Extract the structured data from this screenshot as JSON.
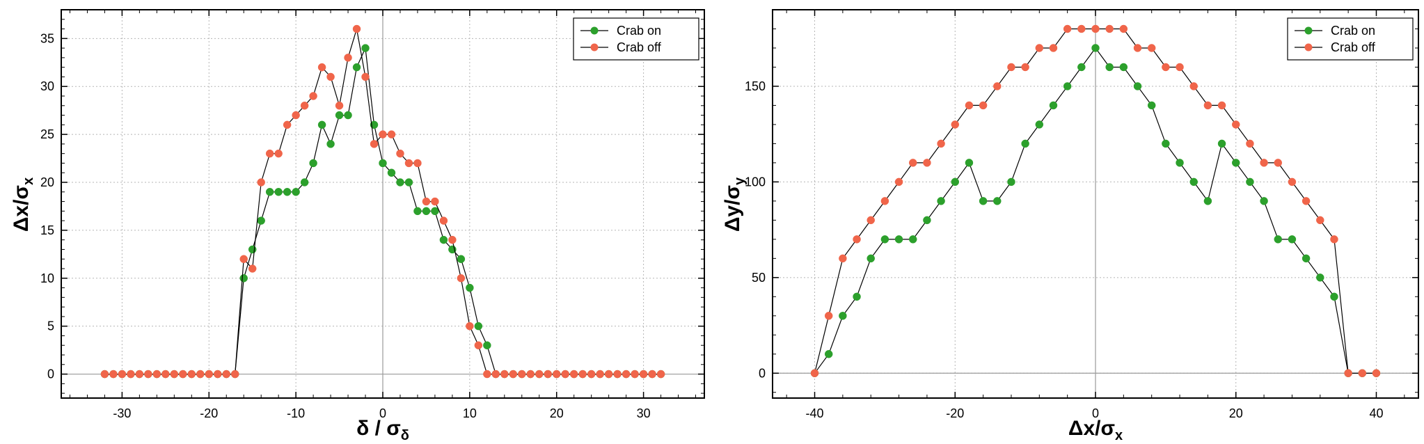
{
  "chart_data": [
    {
      "type": "line",
      "xlabel": "δ / σδ",
      "xlabel_main": "δ / σ",
      "xlabel_sub": "δ",
      "ylabel": "Δx/σx",
      "ylabel_main": "Δx/σ",
      "ylabel_sub": "x",
      "xlim": [
        -37,
        37
      ],
      "ylim": [
        -2.5,
        38
      ],
      "xticks": [
        -30,
        -20,
        -10,
        0,
        10,
        20,
        30
      ],
      "yticks": [
        0,
        5,
        10,
        15,
        20,
        25,
        30,
        35
      ],
      "grid": true,
      "legend_position": "top-right",
      "series": [
        {
          "name": "Crab on",
          "color": "#2ca02c",
          "x": [
            -32,
            -31,
            -30,
            -29,
            -28,
            -27,
            -26,
            -25,
            -24,
            -23,
            -22,
            -21,
            -20,
            -19,
            -18,
            -17,
            -16,
            -15,
            -14,
            -13,
            -12,
            -11,
            -10,
            -9,
            -8,
            -7,
            -6,
            -5,
            -4,
            -3,
            -2,
            -1,
            0,
            1,
            2,
            3,
            4,
            5,
            6,
            7,
            8,
            9,
            10,
            11,
            12,
            13,
            14,
            15,
            16,
            17,
            18,
            19,
            20,
            21,
            22,
            23,
            24,
            25,
            26,
            27,
            28,
            29,
            30,
            31,
            32
          ],
          "y": [
            0,
            0,
            0,
            0,
            0,
            0,
            0,
            0,
            0,
            0,
            0,
            0,
            0,
            0,
            0,
            0,
            10,
            13,
            16,
            19,
            19,
            19,
            19,
            20,
            22,
            26,
            24,
            27,
            27,
            32,
            34,
            26,
            22,
            21,
            20,
            20,
            17,
            17,
            17,
            14,
            13,
            12,
            9,
            5,
            3,
            0,
            0,
            0,
            0,
            0,
            0,
            0,
            0,
            0,
            0,
            0,
            0,
            0,
            0,
            0,
            0,
            0,
            0,
            0,
            0
          ]
        },
        {
          "name": "Crab off",
          "color": "#f0654a",
          "x": [
            -32,
            -31,
            -30,
            -29,
            -28,
            -27,
            -26,
            -25,
            -24,
            -23,
            -22,
            -21,
            -20,
            -19,
            -18,
            -17,
            -16,
            -15,
            -14,
            -13,
            -12,
            -11,
            -10,
            -9,
            -8,
            -7,
            -6,
            -5,
            -4,
            -3,
            -2,
            -1,
            0,
            1,
            2,
            3,
            4,
            5,
            6,
            7,
            8,
            9,
            10,
            11,
            12,
            13,
            14,
            15,
            16,
            17,
            18,
            19,
            20,
            21,
            22,
            23,
            24,
            25,
            26,
            27,
            28,
            29,
            30,
            31,
            32
          ],
          "y": [
            0,
            0,
            0,
            0,
            0,
            0,
            0,
            0,
            0,
            0,
            0,
            0,
            0,
            0,
            0,
            0,
            12,
            11,
            20,
            23,
            23,
            26,
            27,
            28,
            29,
            32,
            31,
            28,
            33,
            36,
            31,
            24,
            25,
            25,
            23,
            22,
            22,
            18,
            18,
            16,
            14,
            10,
            5,
            3,
            0,
            0,
            0,
            0,
            0,
            0,
            0,
            0,
            0,
            0,
            0,
            0,
            0,
            0,
            0,
            0,
            0,
            0,
            0,
            0,
            0
          ]
        }
      ]
    },
    {
      "type": "line",
      "xlabel": "Δx/σx",
      "xlabel_main": "Δx/σ",
      "xlabel_sub": "x",
      "ylabel": "Δy/σy",
      "ylabel_main": "Δy/σ",
      "ylabel_sub": "y",
      "xlim": [
        -46,
        46
      ],
      "ylim": [
        -13,
        190
      ],
      "xticks": [
        -40,
        -20,
        0,
        20,
        40
      ],
      "yticks": [
        0,
        50,
        100,
        150
      ],
      "grid": true,
      "legend_position": "top-right",
      "series": [
        {
          "name": "Crab on",
          "color": "#2ca02c",
          "x": [
            -40,
            -38,
            -36,
            -34,
            -32,
            -30,
            -28,
            -26,
            -24,
            -22,
            -20,
            -18,
            -16,
            -14,
            -12,
            -10,
            -8,
            -6,
            -4,
            -2,
            0,
            2,
            4,
            6,
            8,
            10,
            12,
            14,
            16,
            18,
            20,
            22,
            24,
            26,
            28,
            30,
            32,
            34,
            36,
            38,
            40
          ],
          "y": [
            0,
            10,
            30,
            40,
            60,
            70,
            70,
            70,
            80,
            90,
            100,
            110,
            90,
            90,
            100,
            120,
            130,
            140,
            150,
            160,
            170,
            160,
            160,
            150,
            140,
            120,
            110,
            100,
            90,
            120,
            110,
            100,
            90,
            70,
            70,
            60,
            50,
            40,
            0,
            0,
            0
          ]
        },
        {
          "name": "Crab off",
          "color": "#f0654a",
          "x": [
            -40,
            -38,
            -36,
            -34,
            -32,
            -30,
            -28,
            -26,
            -24,
            -22,
            -20,
            -18,
            -16,
            -14,
            -12,
            -10,
            -8,
            -6,
            -4,
            -2,
            0,
            2,
            4,
            6,
            8,
            10,
            12,
            14,
            16,
            18,
            20,
            22,
            24,
            26,
            28,
            30,
            32,
            34,
            36,
            38,
            40
          ],
          "y": [
            0,
            30,
            60,
            70,
            80,
            90,
            100,
            110,
            110,
            120,
            130,
            140,
            140,
            150,
            160,
            160,
            170,
            170,
            180,
            180,
            180,
            180,
            180,
            170,
            170,
            160,
            160,
            150,
            140,
            140,
            130,
            120,
            110,
            110,
            100,
            90,
            80,
            70,
            0,
            0,
            0
          ]
        }
      ]
    }
  ]
}
